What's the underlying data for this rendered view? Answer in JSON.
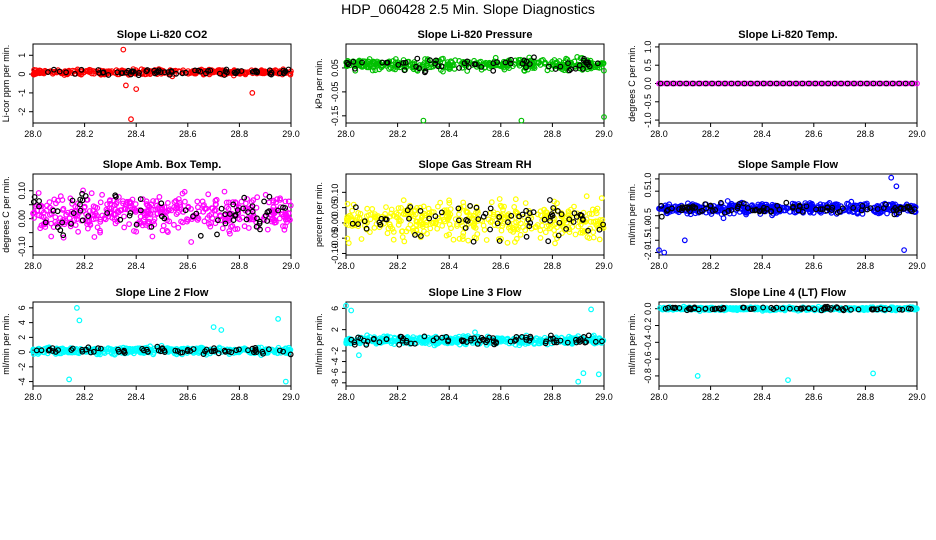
{
  "figure_title": "HDP_060428  2.5 Min. Slope Diagnostics",
  "chart_data": [
    {
      "type": "scatter",
      "title": "Slope Li-820 CO2",
      "ylabel": "Li-cor ppm per min.",
      "xlim": [
        28.0,
        29.0
      ],
      "ylim": [
        -2.6,
        1.6
      ],
      "xticks": [
        28.0,
        28.2,
        28.4,
        28.6,
        28.8,
        29.0
      ],
      "xtick_labels": [
        "28.0",
        "28.2",
        "28.4",
        "28.6",
        "28.8",
        "29.0"
      ],
      "yticks": [
        -2,
        -1,
        0,
        1
      ],
      "ytick_labels": [
        "-2",
        "-1",
        "0",
        "1"
      ],
      "grid": false,
      "series": [
        {
          "color": "#ff0000"
        },
        {
          "color": "#000000"
        }
      ]
    },
    {
      "type": "scatter",
      "title": "Slope Li-820 Pressure",
      "ylabel": "kPa per min.",
      "xlim": [
        28.0,
        29.0
      ],
      "ylim": [
        -0.18,
        0.15
      ],
      "xticks": [
        28.0,
        28.2,
        28.4,
        28.6,
        28.8,
        29.0
      ],
      "xtick_labels": [
        "28.0",
        "28.2",
        "28.4",
        "28.6",
        "28.8",
        "29.0"
      ],
      "yticks": [
        0.05,
        -0.05,
        -0.15
      ],
      "ytick_labels": [
        "0.05",
        "-0.05",
        "-0.15"
      ],
      "grid": false,
      "series": [
        {
          "color": "#00c000"
        },
        {
          "color": "#000000"
        }
      ]
    },
    {
      "type": "scatter",
      "title": "Slope Li-820 Temp.",
      "ylabel": "degrees C per min.",
      "xlim": [
        28.0,
        29.0
      ],
      "ylim": [
        -1.08,
        1.08
      ],
      "xticks": [
        28.0,
        28.2,
        28.4,
        28.6,
        28.8,
        29.0
      ],
      "xtick_labels": [
        "28.0",
        "28.2",
        "28.4",
        "28.6",
        "28.8",
        "29.0"
      ],
      "yticks": [
        -1.0,
        -0.5,
        0.0,
        0.5,
        1.0
      ],
      "ytick_labels": [
        "-1.0",
        "-0.5",
        "0.0",
        "0.5",
        "1.0"
      ],
      "grid": false,
      "series": [
        {
          "color": "#ff00ff"
        },
        {
          "color": "#000000"
        }
      ]
    },
    {
      "type": "scatter",
      "title": "Slope Amb. Box Temp.",
      "ylabel": "degrees C per min.",
      "xlim": [
        28.0,
        29.0
      ],
      "ylim": [
        -0.13,
        0.16
      ],
      "xticks": [
        28.0,
        28.2,
        28.4,
        28.6,
        28.8,
        29.0
      ],
      "xtick_labels": [
        "28.0",
        "28.2",
        "28.4",
        "28.6",
        "28.8",
        "29.0"
      ],
      "yticks": [
        -0.1,
        0.0,
        0.1
      ],
      "ytick_labels": [
        "-0.10",
        "0.00",
        "0.10"
      ],
      "yticks_unlabeled": [
        -0.05,
        0.05
      ],
      "grid": false,
      "series": [
        {
          "color": "#ff00ff"
        },
        {
          "color": "#000000"
        }
      ]
    },
    {
      "type": "scatter",
      "title": "Slope Gas Stream RH",
      "ylabel": "percent per min.",
      "xlim": [
        28.0,
        29.0
      ],
      "ylim": [
        -0.105,
        0.16
      ],
      "xticks": [
        28.0,
        28.2,
        28.4,
        28.6,
        28.8,
        29.0
      ],
      "xtick_labels": [
        "28.0",
        "28.2",
        "28.4",
        "28.6",
        "28.8",
        "29.0"
      ],
      "yticks": [
        -0.1,
        -0.05,
        0.0,
        0.05,
        0.1
      ],
      "ytick_labels": [
        "-0.10",
        "-0.05",
        "0.00",
        "0.05",
        "0.10"
      ],
      "grid": false,
      "series": [
        {
          "color": "#ffff00"
        },
        {
          "color": "#000000"
        }
      ]
    },
    {
      "type": "scatter",
      "title": "Slope Sample Flow",
      "ylabel": "ml/min per min.",
      "xlim": [
        28.0,
        29.0
      ],
      "ylim": [
        -2.1,
        1.2
      ],
      "xticks": [
        28.0,
        28.2,
        28.4,
        28.6,
        28.8,
        29.0
      ],
      "xtick_labels": [
        "28.0",
        "28.2",
        "28.4",
        "28.6",
        "28.8",
        "29.0"
      ],
      "yticks": [
        -2.0,
        -1.5,
        -1.0,
        -0.5,
        0.5,
        1.0
      ],
      "ytick_labels": [
        "-2.0",
        "-1.5",
        "-1.0",
        "-0.5",
        "0.5",
        "1.0"
      ],
      "grid": false,
      "series": [
        {
          "color": "#0000ff"
        },
        {
          "color": "#000000"
        }
      ]
    },
    {
      "type": "scatter",
      "title": "Slope Line 2 Flow",
      "ylabel": "ml/min per min.",
      "xlim": [
        28.0,
        29.0
      ],
      "ylim": [
        -4.6,
        6.8
      ],
      "xticks": [
        28.0,
        28.2,
        28.4,
        28.6,
        28.8,
        29.0
      ],
      "xtick_labels": [
        "28.0",
        "28.2",
        "28.4",
        "28.6",
        "28.8",
        "29.0"
      ],
      "yticks": [
        -4,
        -2,
        0,
        2,
        4,
        6
      ],
      "ytick_labels": [
        "-4",
        "-2",
        "0",
        "2",
        "4",
        "6"
      ],
      "grid": false,
      "series": [
        {
          "color": "#00ffff"
        },
        {
          "color": "#000000"
        }
      ]
    },
    {
      "type": "scatter",
      "title": "Slope Line 3 Flow",
      "ylabel": "ml/min per min.",
      "xlim": [
        28.0,
        29.0
      ],
      "ylim": [
        -8.6,
        7.2
      ],
      "xticks": [
        28.0,
        28.2,
        28.4,
        28.6,
        28.8,
        29.0
      ],
      "xtick_labels": [
        "28.0",
        "28.2",
        "28.4",
        "28.6",
        "28.8",
        "29.0"
      ],
      "yticks": [
        -8,
        -6,
        -4,
        -2,
        2,
        6
      ],
      "ytick_labels": [
        "-8",
        "-6",
        "-4",
        "-2",
        "2",
        "6"
      ],
      "grid": false,
      "series": [
        {
          "color": "#00ffff"
        },
        {
          "color": "#000000"
        }
      ]
    },
    {
      "type": "scatter",
      "title": "Slope Line 4 (LT) Flow",
      "ylabel": "ml/min per min.",
      "xlim": [
        28.0,
        29.0
      ],
      "ylim": [
        -0.92,
        0.08
      ],
      "xticks": [
        28.0,
        28.2,
        28.4,
        28.6,
        28.8,
        29.0
      ],
      "xtick_labels": [
        "28.0",
        "28.2",
        "28.4",
        "28.6",
        "28.8",
        "29.0"
      ],
      "yticks": [
        -0.8,
        -0.6,
        -0.4,
        -0.2,
        0.0
      ],
      "ytick_labels": [
        "-0.8",
        "-0.6",
        "-0.4",
        "-0.2",
        "0.0"
      ],
      "grid": false,
      "series": [
        {
          "color": "#00ffff"
        },
        {
          "color": "#000000"
        }
      ]
    }
  ]
}
